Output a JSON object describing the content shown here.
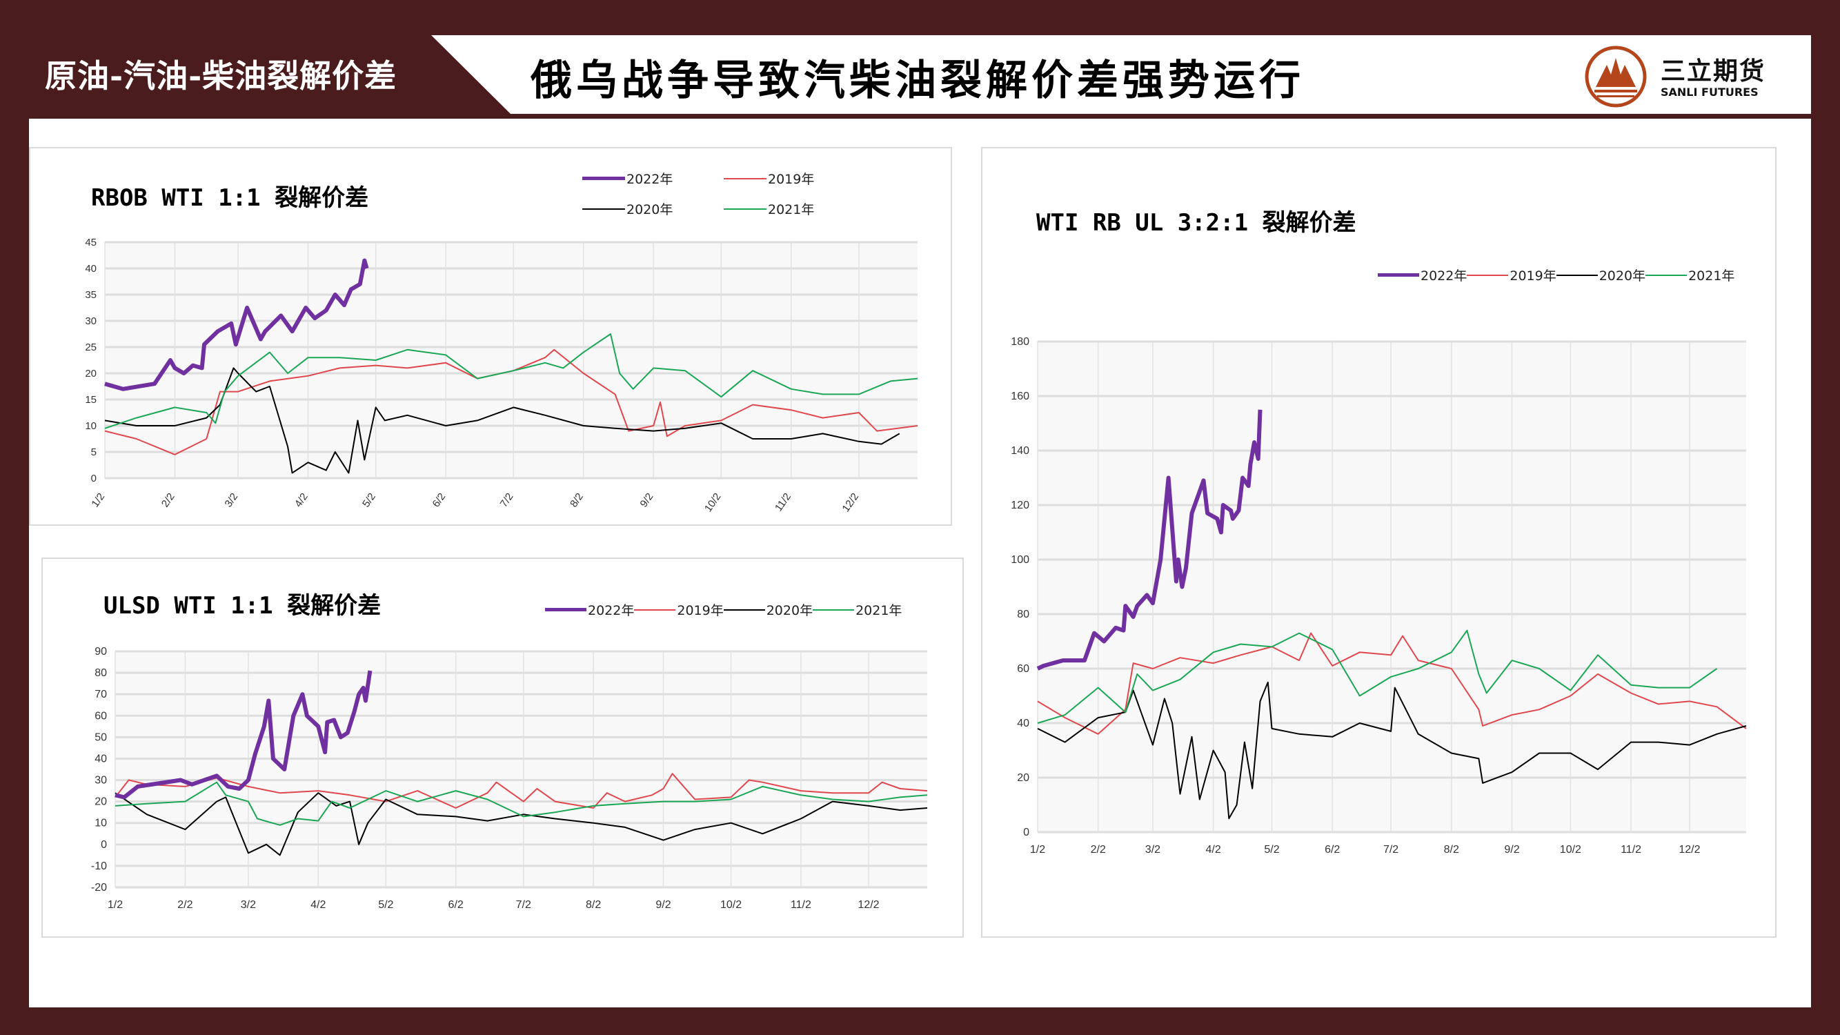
{
  "header": {
    "section_label": "原油-汽油-柴油裂解价差",
    "title": "俄乌战争导致汽柴油裂解价差强势运行",
    "logo_cn": "三立期货",
    "logo_en": "SANLI FUTURES"
  },
  "colors": {
    "frame": "#4a1c1e",
    "2022年": "#7030a0",
    "2019年": "#e0474c",
    "2020年": "#000000",
    "2021年": "#1aa655",
    "logo": "#b5451b"
  },
  "chart_data": [
    {
      "id": "rbob",
      "type": "line",
      "title": "RBOB WTI 1:1 裂解价差",
      "xlabel": "",
      "ylabel": "",
      "ylim": [
        0,
        45
      ],
      "ystep": 5,
      "xlim": [
        "1/2",
        "12/28"
      ],
      "x_ticks": [
        "1/2",
        "2/2",
        "3/2",
        "4/2",
        "5/2",
        "6/2",
        "7/2",
        "8/2",
        "9/2",
        "10/2",
        "11/2",
        "12/2"
      ],
      "x_tick_rotation": "rotated",
      "grid": true,
      "legend": [
        "2022年",
        "2019年",
        "2020年",
        "2021年"
      ],
      "series": [
        {
          "name": "2022年",
          "x": [
            "1/2",
            "1/10",
            "1/24",
            "1/31",
            "2/2",
            "2/6",
            "2/10",
            "2/14",
            "2/15",
            "2/21",
            "2/27",
            "3/1",
            "3/6",
            "3/12",
            "3/14",
            "3/21",
            "3/26",
            "4/1",
            "4/5",
            "4/10",
            "4/14",
            "4/18",
            "4/21",
            "4/25",
            "4/27",
            "4/28"
          ],
          "y": [
            18,
            17,
            18,
            22.5,
            21,
            20,
            21.5,
            21,
            25.5,
            28,
            29.5,
            25.5,
            32.5,
            26.5,
            28,
            31,
            28,
            32.5,
            30.5,
            32,
            35,
            33,
            36,
            37,
            41.5,
            40
          ]
        },
        {
          "name": "2019年",
          "x": [
            "1/2",
            "1/16",
            "2/2",
            "2/16",
            "2/22",
            "3/2",
            "3/16",
            "4/2",
            "4/16",
            "5/2",
            "5/16",
            "6/2",
            "6/16",
            "7/2",
            "7/16",
            "7/20",
            "8/2",
            "8/16",
            "8/22",
            "9/2",
            "9/5",
            "9/8",
            "9/16",
            "10/2",
            "10/16",
            "11/2",
            "11/16",
            "12/2",
            "12/10",
            "12/28"
          ],
          "y": [
            9,
            7.5,
            4.5,
            7.5,
            16.5,
            16.5,
            18.5,
            19.5,
            21,
            21.5,
            21,
            22,
            19,
            20.5,
            23,
            24.5,
            20,
            16,
            9,
            10,
            14.5,
            8,
            10,
            11,
            14,
            13,
            11.5,
            12.5,
            9,
            10
          ]
        },
        {
          "name": "2020年",
          "x": [
            "1/2",
            "1/16",
            "2/2",
            "2/16",
            "2/22",
            "2/28",
            "3/2",
            "3/10",
            "3/16",
            "3/24",
            "3/26",
            "4/2",
            "4/10",
            "4/14",
            "4/20",
            "4/24",
            "4/27",
            "5/2",
            "5/6",
            "5/16",
            "6/2",
            "6/16",
            "7/2",
            "7/16",
            "8/2",
            "8/16",
            "9/2",
            "9/16",
            "10/2",
            "10/16",
            "11/2",
            "11/16",
            "12/2",
            "12/12",
            "12/20"
          ],
          "y": [
            11,
            10,
            10,
            11.5,
            14,
            21,
            20,
            16.5,
            17.5,
            6,
            1,
            3,
            1.5,
            5,
            1,
            11,
            3.5,
            13.5,
            11,
            12,
            10,
            11,
            13.5,
            12,
            10,
            9.5,
            9,
            9.5,
            10.5,
            7.5,
            7.5,
            8.5,
            7,
            6.5,
            8.5
          ]
        },
        {
          "name": "2021年",
          "x": [
            "1/2",
            "1/16",
            "2/2",
            "2/16",
            "2/20",
            "2/24",
            "3/2",
            "3/16",
            "3/24",
            "4/2",
            "4/16",
            "5/2",
            "5/16",
            "6/2",
            "6/16",
            "7/2",
            "7/16",
            "7/24",
            "8/2",
            "8/14",
            "8/18",
            "8/24",
            "9/2",
            "9/16",
            "10/2",
            "10/16",
            "11/2",
            "11/16",
            "12/2",
            "12/16",
            "12/28"
          ],
          "y": [
            9.5,
            11.5,
            13.5,
            12.5,
            10.5,
            16.5,
            19.5,
            24,
            20,
            23,
            23,
            22.5,
            24.5,
            23.5,
            19,
            20.5,
            22,
            21,
            24,
            27.5,
            20,
            17,
            21,
            20.5,
            15.5,
            20.5,
            17,
            16,
            16,
            18.5,
            19
          ]
        }
      ]
    },
    {
      "id": "ulsd",
      "type": "line",
      "title": "ULSD WTI 1:1 裂解价差",
      "xlabel": "",
      "ylabel": "",
      "ylim": [
        -20,
        90
      ],
      "ystep": 10,
      "xlim": [
        "1/2",
        "12/28"
      ],
      "x_ticks": [
        "1/2",
        "2/2",
        "3/2",
        "4/2",
        "5/2",
        "6/2",
        "7/2",
        "8/2",
        "9/2",
        "10/2",
        "11/2",
        "12/2"
      ],
      "grid": true,
      "legend": [
        "2022年",
        "2019年",
        "2020年",
        "2021年"
      ],
      "series": [
        {
          "name": "2022年",
          "x": [
            "1/2",
            "1/6",
            "1/12",
            "1/31",
            "2/5",
            "2/16",
            "2/21",
            "2/26",
            "3/2",
            "3/5",
            "3/9",
            "3/11",
            "3/13",
            "3/18",
            "3/22",
            "3/26",
            "3/28",
            "4/2",
            "4/5",
            "4/6",
            "4/9",
            "4/12",
            "4/15",
            "4/18",
            "4/20",
            "4/22",
            "4/23",
            "4/25"
          ],
          "y": [
            23,
            22,
            27,
            30,
            28,
            32,
            27,
            26,
            30,
            42,
            55,
            67,
            40,
            35,
            60,
            70,
            60,
            55,
            43,
            57,
            58,
            50,
            52,
            62,
            70,
            73,
            67,
            81
          ]
        },
        {
          "name": "2019年",
          "x": [
            "1/2",
            "1/8",
            "1/16",
            "2/2",
            "2/16",
            "3/2",
            "3/16",
            "4/2",
            "4/16",
            "5/2",
            "5/16",
            "6/2",
            "6/16",
            "6/20",
            "7/2",
            "7/8",
            "7/16",
            "8/2",
            "8/8",
            "8/16",
            "8/28",
            "9/2",
            "9/6",
            "9/16",
            "10/2",
            "10/10",
            "10/16",
            "11/2",
            "11/16",
            "12/2",
            "12/8",
            "12/16",
            "12/28"
          ],
          "y": [
            22,
            30,
            28,
            27,
            31,
            27,
            24,
            25,
            23,
            20,
            25,
            17,
            24,
            29,
            20,
            26,
            20,
            17,
            24,
            20,
            23,
            26,
            33,
            21,
            22,
            30,
            29,
            25,
            24,
            24,
            29,
            26,
            25
          ]
        },
        {
          "name": "2020年",
          "x": [
            "1/2",
            "1/16",
            "2/2",
            "2/16",
            "2/20",
            "3/2",
            "3/10",
            "3/16",
            "3/24",
            "4/2",
            "4/10",
            "4/16",
            "4/20",
            "4/24",
            "5/2",
            "5/16",
            "6/2",
            "6/16",
            "7/2",
            "7/16",
            "8/2",
            "8/16",
            "9/2",
            "9/16",
            "10/2",
            "10/16",
            "11/2",
            "11/16",
            "12/2",
            "12/16",
            "12/28"
          ],
          "y": [
            24,
            14,
            7,
            20,
            22,
            -4,
            0,
            -5,
            15,
            24,
            18,
            20,
            0,
            10,
            21,
            14,
            13,
            11,
            14,
            12,
            10,
            8,
            2,
            7,
            10,
            5,
            12,
            20,
            18,
            16,
            17
          ]
        },
        {
          "name": "2021年",
          "x": [
            "1/2",
            "1/16",
            "2/2",
            "2/16",
            "2/20",
            "3/2",
            "3/6",
            "3/16",
            "3/24",
            "4/2",
            "4/8",
            "4/16",
            "5/2",
            "5/16",
            "6/2",
            "6/16",
            "7/2",
            "7/16",
            "8/2",
            "8/16",
            "9/2",
            "9/16",
            "10/2",
            "10/16",
            "11/2",
            "11/16",
            "12/2",
            "12/16",
            "12/28"
          ],
          "y": [
            18,
            19,
            20,
            29,
            23,
            20,
            12,
            9,
            12,
            11,
            20,
            17,
            25,
            20,
            25,
            21,
            13,
            15,
            18,
            19,
            20,
            20,
            21,
            27,
            23,
            21,
            20,
            22,
            23
          ]
        }
      ]
    },
    {
      "id": "wti321",
      "type": "line",
      "title": "WTI RB UL 3:2:1 裂解价差",
      "xlabel": "",
      "ylabel": "",
      "ylim": [
        0,
        180
      ],
      "ystep": 20,
      "xlim": [
        "1/2",
        "12/31"
      ],
      "x_ticks": [
        "1/2",
        "2/2",
        "3/2",
        "4/2",
        "5/2",
        "6/2",
        "7/2",
        "8/2",
        "9/2",
        "10/2",
        "11/2",
        "12/2"
      ],
      "grid": true,
      "legend": [
        "2022年",
        "2019年",
        "2020年",
        "2021年"
      ],
      "series": [
        {
          "name": "2022年",
          "x": [
            "1/2",
            "1/5",
            "1/15",
            "1/26",
            "1/31",
            "2/5",
            "2/11",
            "2/15",
            "2/16",
            "2/20",
            "2/22",
            "2/27",
            "3/2",
            "3/6",
            "3/8",
            "3/10",
            "3/14",
            "3/15",
            "3/17",
            "3/19",
            "3/22",
            "3/28",
            "3/30",
            "4/4",
            "4/6",
            "4/7",
            "4/11",
            "4/12",
            "4/15",
            "4/17",
            "4/20",
            "4/21",
            "4/23",
            "4/25",
            "4/26"
          ],
          "y": [
            60,
            61,
            63,
            63,
            73,
            70,
            75,
            74,
            83,
            79,
            83,
            87,
            84,
            100,
            115,
            130,
            92,
            100,
            90,
            97,
            117,
            129,
            117,
            115,
            110,
            120,
            118,
            115,
            118,
            130,
            127,
            135,
            143,
            137,
            155
          ]
        },
        {
          "name": "2019年",
          "x": [
            "1/2",
            "1/16",
            "2/2",
            "2/16",
            "2/20",
            "3/2",
            "3/16",
            "4/2",
            "4/16",
            "5/2",
            "5/16",
            "5/22",
            "6/2",
            "6/16",
            "7/2",
            "7/8",
            "7/16",
            "8/2",
            "8/16",
            "8/18",
            "9/2",
            "9/16",
            "10/2",
            "10/16",
            "11/2",
            "11/16",
            "12/2",
            "12/16",
            "12/31"
          ],
          "y": [
            48,
            42,
            36,
            45,
            62,
            60,
            64,
            62,
            65,
            68,
            63,
            73,
            61,
            66,
            65,
            72,
            63,
            60,
            45,
            39,
            43,
            45,
            50,
            58,
            51,
            47,
            48,
            46,
            38
          ]
        },
        {
          "name": "2020年",
          "x": [
            "1/2",
            "1/16",
            "2/2",
            "2/16",
            "2/20",
            "3/2",
            "3/8",
            "3/12",
            "3/16",
            "3/22",
            "3/26",
            "4/2",
            "4/8",
            "4/10",
            "4/14",
            "4/18",
            "4/22",
            "4/26",
            "4/30",
            "5/2",
            "5/16",
            "6/2",
            "6/16",
            "7/2",
            "7/4",
            "7/16",
            "8/2",
            "8/16",
            "8/18",
            "9/2",
            "9/16",
            "10/2",
            "10/16",
            "11/2",
            "11/16",
            "12/2",
            "12/16",
            "12/31"
          ],
          "y": [
            38,
            33,
            42,
            44,
            52,
            32,
            49,
            40,
            14,
            35,
            12,
            30,
            22,
            5,
            10,
            33,
            16,
            48,
            55,
            38,
            36,
            35,
            40,
            37,
            53,
            36,
            29,
            27,
            18,
            22,
            29,
            29,
            23,
            33,
            33,
            32,
            36,
            39
          ]
        },
        {
          "name": "2021年",
          "x": [
            "1/2",
            "1/16",
            "2/2",
            "2/16",
            "2/22",
            "3/2",
            "3/16",
            "4/2",
            "4/16",
            "5/2",
            "5/16",
            "6/2",
            "6/16",
            "7/2",
            "7/16",
            "8/2",
            "8/10",
            "8/16",
            "8/20",
            "9/2",
            "9/16",
            "10/2",
            "10/16",
            "11/2",
            "11/16",
            "12/2",
            "12/16"
          ],
          "y": [
            40,
            43,
            53,
            44,
            58,
            52,
            56,
            66,
            69,
            68,
            73,
            67,
            50,
            57,
            60,
            66,
            74,
            58,
            51,
            63,
            60,
            52,
            65,
            54,
            53,
            53,
            60
          ]
        }
      ]
    }
  ]
}
